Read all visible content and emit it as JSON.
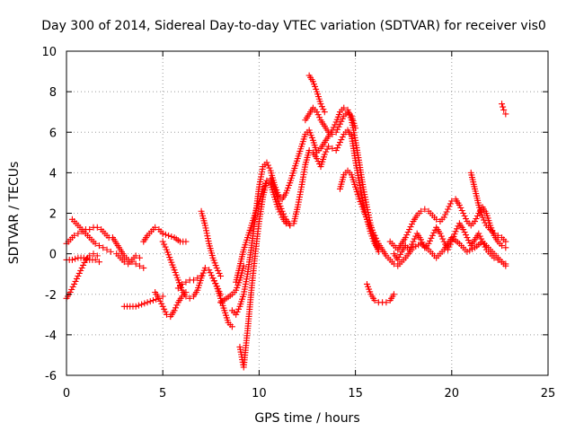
{
  "chart_data": {
    "type": "scatter",
    "title": "Day 300 of 2014, Sidereal Day-to-day VTEC variation (SDTVAR) for receiver vis0",
    "xlabel": "GPS time / hours",
    "ylabel": "SDTVAR / TECUs",
    "xlim": [
      0,
      25
    ],
    "ylim": [
      -6,
      10
    ],
    "xticks": [
      "0",
      "5",
      "10",
      "15",
      "20",
      "25"
    ],
    "yticks": [
      "-6",
      "-4",
      "-2",
      "0",
      "2",
      "4",
      "6",
      "8",
      "10"
    ],
    "grid": true,
    "marker": "plus",
    "color": "#ff0000",
    "series": [
      {
        "name": "trace-1",
        "x": [
          0.0,
          0.2,
          0.4,
          0.6,
          0.8,
          1.0,
          1.2,
          1.4,
          1.6,
          1.8,
          2.0,
          2.2,
          2.4
        ],
        "y": [
          0.5,
          0.7,
          0.9,
          1.0,
          1.1,
          1.2,
          1.2,
          1.3,
          1.3,
          1.2,
          1.0,
          0.8,
          0.8
        ]
      },
      {
        "name": "trace-2",
        "x": [
          0.3,
          0.5,
          0.7,
          0.9,
          1.1,
          1.3,
          1.5,
          1.7,
          1.9,
          2.1,
          2.3
        ],
        "y": [
          1.7,
          1.5,
          1.3,
          1.1,
          0.9,
          0.7,
          0.5,
          0.4,
          0.3,
          0.2,
          0.1
        ]
      },
      {
        "name": "trace-3",
        "x": [
          0.0,
          0.2,
          0.4,
          0.6,
          0.8,
          1.0,
          1.2,
          1.4,
          1.6
        ],
        "y": [
          -2.2,
          -1.9,
          -1.5,
          -1.1,
          -0.7,
          -0.3,
          -0.1,
          0.0,
          -0.1
        ]
      },
      {
        "name": "trace-4",
        "x": [
          0.0,
          0.3,
          0.6,
          0.9,
          1.2,
          1.5,
          1.7
        ],
        "y": [
          -0.3,
          -0.3,
          -0.2,
          -0.2,
          -0.3,
          -0.3,
          -0.4
        ]
      },
      {
        "name": "trace-5",
        "x": [
          2.4,
          2.6,
          2.8,
          3.0,
          3.2,
          3.4,
          3.6,
          3.8,
          4.0
        ],
        "y": [
          0.8,
          0.5,
          0.2,
          -0.1,
          -0.3,
          -0.4,
          -0.5,
          -0.6,
          -0.7
        ]
      },
      {
        "name": "trace-6",
        "x": [
          2.6,
          2.8,
          3.0,
          3.2,
          3.4,
          3.6,
          3.8
        ],
        "y": [
          0.0,
          -0.2,
          -0.4,
          -0.5,
          -0.3,
          -0.1,
          -0.2
        ]
      },
      {
        "name": "trace-7",
        "x": [
          4.0,
          4.2,
          4.4,
          4.6,
          4.8,
          5.0
        ],
        "y": [
          0.6,
          0.9,
          1.1,
          1.3,
          1.2,
          1.0
        ]
      },
      {
        "name": "trace-8",
        "x": [
          5.0,
          5.3,
          5.6,
          5.9,
          6.2
        ],
        "y": [
          1.0,
          0.9,
          0.8,
          0.6,
          0.6
        ]
      },
      {
        "name": "trace-9",
        "x": [
          5.0,
          5.2,
          5.4,
          5.6,
          5.8,
          6.0,
          6.2,
          6.4,
          6.6,
          6.8,
          7.0,
          7.2,
          7.4,
          7.6,
          7.8,
          8.0
        ],
        "y": [
          0.6,
          0.2,
          -0.3,
          -0.8,
          -1.3,
          -1.8,
          -2.1,
          -2.2,
          -2.1,
          -1.8,
          -1.2,
          -0.7,
          -0.8,
          -1.2,
          -1.6,
          -2.0
        ]
      },
      {
        "name": "trace-10",
        "x": [
          3.0,
          3.3,
          3.6,
          3.9,
          4.2,
          4.5,
          4.8,
          5.0
        ],
        "y": [
          -2.6,
          -2.6,
          -2.6,
          -2.5,
          -2.4,
          -2.3,
          -2.2,
          -2.1
        ]
      },
      {
        "name": "trace-11",
        "x": [
          4.6,
          4.8,
          5.0,
          5.2,
          5.4,
          5.6,
          5.8,
          6.0,
          6.2
        ],
        "y": [
          -1.9,
          -2.2,
          -2.6,
          -3.0,
          -3.1,
          -2.8,
          -2.4,
          -2.1,
          -1.9
        ]
      },
      {
        "name": "trace-12",
        "x": [
          5.8,
          6.0,
          6.2,
          6.4,
          6.6,
          6.8,
          7.0
        ],
        "y": [
          -1.7,
          -1.5,
          -1.4,
          -1.3,
          -1.3,
          -1.2,
          -1.1
        ]
      },
      {
        "name": "trace-13",
        "x": [
          7.0,
          7.2,
          7.4,
          7.6,
          7.8,
          8.0
        ],
        "y": [
          2.1,
          1.4,
          0.5,
          -0.2,
          -0.7,
          -1.1
        ]
      },
      {
        "name": "trace-14",
        "x": [
          7.6,
          7.8,
          8.0,
          8.2,
          8.4,
          8.6
        ],
        "y": [
          -1.2,
          -1.6,
          -2.2,
          -2.8,
          -3.4,
          -3.6
        ]
      },
      {
        "name": "trace-15",
        "x": [
          8.0,
          8.3,
          8.6,
          8.8,
          9.0,
          9.2
        ],
        "y": [
          -2.4,
          -2.2,
          -2.0,
          -1.8,
          -1.3,
          -0.6
        ]
      },
      {
        "name": "trace-16",
        "x": [
          8.6,
          8.8,
          9.0,
          9.2,
          9.4,
          9.6,
          9.8,
          10.0,
          10.2,
          10.4,
          10.6,
          10.8,
          11.0,
          11.2,
          11.4,
          11.6,
          11.8,
          12.0,
          12.2,
          12.4,
          12.6,
          12.8,
          13.0,
          13.2,
          13.4,
          13.6,
          13.8,
          14.0,
          14.2,
          14.4,
          14.6,
          14.8,
          15.0,
          15.2,
          15.4,
          15.6,
          15.8,
          16.0,
          16.2
        ],
        "y": [
          -2.8,
          -3.0,
          -2.6,
          -2.0,
          -1.0,
          0.3,
          1.8,
          3.3,
          4.3,
          4.5,
          4.1,
          3.4,
          2.9,
          2.7,
          3.0,
          3.5,
          4.1,
          4.7,
          5.3,
          5.9,
          6.1,
          5.6,
          5.0,
          5.2,
          5.5,
          5.8,
          6.1,
          6.5,
          7.0,
          7.2,
          7.1,
          6.6,
          5.6,
          4.5,
          3.3,
          2.3,
          1.4,
          0.7,
          0.1
        ]
      },
      {
        "name": "trace-17",
        "x": [
          9.0,
          9.2,
          9.4,
          9.6,
          9.8,
          10.0,
          10.2,
          10.4,
          10.6,
          10.8,
          11.0,
          11.2,
          11.4,
          11.6,
          11.8,
          12.0,
          12.2,
          12.4,
          12.6,
          12.8,
          13.0,
          13.2,
          13.4,
          13.6,
          13.8,
          14.0,
          14.2,
          14.4,
          14.6,
          14.8,
          15.0,
          15.2,
          15.4,
          15.6,
          15.8,
          16.0,
          16.2
        ],
        "y": [
          -4.6,
          -5.6,
          -3.8,
          -1.8,
          0.0,
          1.6,
          2.8,
          3.6,
          3.7,
          3.2,
          2.6,
          2.1,
          1.7,
          1.4,
          1.5,
          2.3,
          3.3,
          4.4,
          5.1,
          5.0,
          4.7,
          4.3,
          4.9,
          5.3,
          5.2,
          5.1,
          5.5,
          5.9,
          6.1,
          5.8,
          4.6,
          3.5,
          2.5,
          1.7,
          1.0,
          0.5,
          0.2
        ]
      },
      {
        "name": "trace-18",
        "x": [
          8.8,
          9.0,
          9.2,
          9.4,
          9.6,
          9.8,
          10.0,
          10.2,
          10.4,
          10.6,
          10.8,
          11.0,
          11.2,
          11.4,
          11.6
        ],
        "y": [
          -1.4,
          -0.6,
          0.2,
          0.8,
          1.4,
          2.0,
          2.6,
          3.2,
          3.6,
          3.4,
          2.8,
          2.2,
          1.8,
          1.5,
          1.4
        ]
      },
      {
        "name": "trace-19",
        "x": [
          12.6,
          12.8,
          13.0,
          13.2,
          13.4
        ],
        "y": [
          8.8,
          8.5,
          8.0,
          7.4,
          7.0
        ]
      },
      {
        "name": "trace-20",
        "x": [
          12.4,
          12.6,
          12.8,
          13.0,
          13.2,
          13.4,
          13.6,
          13.8,
          14.0,
          14.2,
          14.4,
          14.6,
          14.8,
          15.0
        ],
        "y": [
          6.6,
          6.9,
          7.2,
          7.0,
          6.6,
          6.3,
          6.0,
          5.9,
          6.0,
          6.4,
          6.8,
          7.0,
          6.8,
          6.2
        ]
      },
      {
        "name": "trace-21",
        "x": [
          14.2,
          14.4,
          14.6,
          14.8,
          15.0,
          15.2,
          15.4,
          15.6,
          15.8,
          16.0,
          16.2,
          16.4,
          16.6,
          16.8,
          17.0
        ],
        "y": [
          3.2,
          3.9,
          4.1,
          3.9,
          3.3,
          2.7,
          2.2,
          1.7,
          1.3,
          0.9,
          0.5,
          0.2,
          -0.1,
          -0.3,
          -0.5
        ]
      },
      {
        "name": "trace-22",
        "x": [
          15.6,
          15.8,
          16.0,
          16.2,
          16.4,
          16.6,
          16.8,
          17.0
        ],
        "y": [
          -1.5,
          -2.0,
          -2.3,
          -2.4,
          -2.4,
          -2.4,
          -2.3,
          -2.0
        ]
      },
      {
        "name": "trace-23",
        "x": [
          16.8,
          17.0,
          17.2,
          17.4,
          17.6,
          17.8,
          18.0,
          18.2,
          18.4,
          18.6,
          18.8,
          19.0,
          19.2,
          19.4,
          19.6,
          19.8,
          20.0,
          20.2,
          20.4,
          20.6,
          20.8,
          21.0,
          21.2,
          21.4,
          21.6,
          21.8,
          22.0,
          22.2,
          22.4,
          22.6,
          22.8
        ],
        "y": [
          0.6,
          0.4,
          0.2,
          0.5,
          0.8,
          1.2,
          1.6,
          1.9,
          2.1,
          2.2,
          2.1,
          1.9,
          1.7,
          1.6,
          1.8,
          2.2,
          2.6,
          2.7,
          2.4,
          2.0,
          1.6,
          1.4,
          1.6,
          2.0,
          2.3,
          2.0,
          1.4,
          0.9,
          0.6,
          0.4,
          0.3
        ]
      },
      {
        "name": "trace-24",
        "x": [
          17.0,
          17.2,
          17.4,
          17.6,
          17.8,
          18.0,
          18.2,
          18.4,
          18.6,
          18.8,
          19.0,
          19.2,
          19.4,
          19.6,
          19.8,
          20.0,
          20.2,
          20.4,
          20.6,
          20.8,
          21.0,
          21.2,
          21.4,
          21.6,
          21.8,
          22.0,
          22.2,
          22.4,
          22.6,
          22.8
        ],
        "y": [
          0.0,
          -0.3,
          0.1,
          0.4,
          0.2,
          0.6,
          1.0,
          0.7,
          0.3,
          0.5,
          0.9,
          1.3,
          1.0,
          0.6,
          0.2,
          0.6,
          1.1,
          1.5,
          1.2,
          0.8,
          0.4,
          0.7,
          1.0,
          0.6,
          0.2,
          0.0,
          -0.2,
          -0.3,
          -0.4,
          -0.5
        ]
      },
      {
        "name": "trace-25",
        "x": [
          17.2,
          17.6,
          18.0,
          18.4,
          18.8,
          19.2,
          19.6,
          20.0,
          20.4,
          20.8,
          21.2,
          21.6,
          22.0,
          22.4,
          22.8
        ],
        "y": [
          -0.6,
          -0.2,
          0.3,
          0.5,
          0.2,
          -0.2,
          0.2,
          0.8,
          0.5,
          0.1,
          0.3,
          0.6,
          0.2,
          -0.2,
          -0.6
        ]
      },
      {
        "name": "trace-26",
        "x": [
          21.0,
          21.2,
          21.4,
          21.6,
          21.8,
          22.0,
          22.2,
          22.4,
          22.6,
          22.8
        ],
        "y": [
          4.0,
          3.2,
          2.4,
          1.8,
          1.4,
          1.2,
          1.0,
          0.9,
          0.8,
          0.6
        ]
      },
      {
        "name": "trace-27",
        "x": [
          22.6,
          22.7,
          22.8
        ],
        "y": [
          7.4,
          7.1,
          6.9
        ]
      }
    ]
  }
}
